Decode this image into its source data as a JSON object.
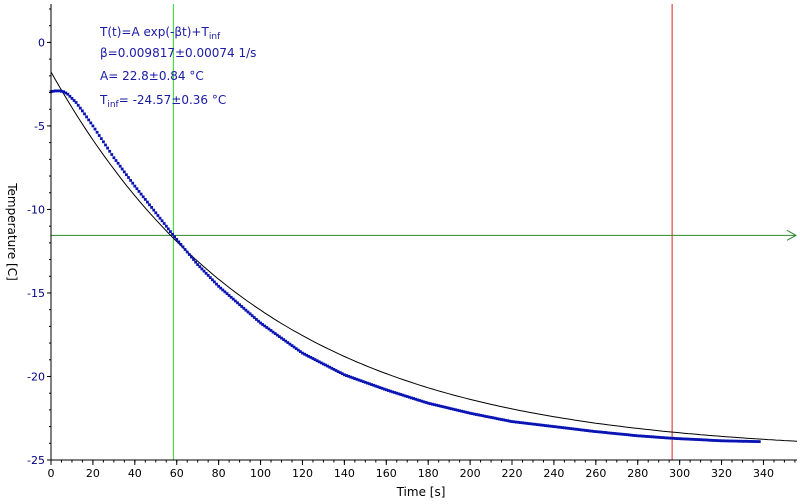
{
  "colors": {
    "data": "#0a14b4",
    "fit": "#000000",
    "vertical_cursor_1": "#2bd92b",
    "vertical_cursor_2": "#d82020",
    "horizontal_cursor": "#2a8a2a",
    "annotation": "#1a1aa6",
    "ylabel": "#1a1ac8",
    "y_ticks": "#000080",
    "x_ticks": "#000000"
  },
  "chart_data": {
    "type": "scatter",
    "xlabel": "Time [s]",
    "ylabel": "Temperature [C]",
    "xlim": [
      0,
      356
    ],
    "ylim": [
      -25,
      2.3
    ],
    "x_ticks": [
      0,
      20,
      40,
      60,
      80,
      100,
      120,
      140,
      160,
      180,
      200,
      220,
      240,
      260,
      280,
      300,
      320,
      340
    ],
    "y_ticks": [
      0,
      -5,
      -10,
      -15,
      -20,
      -25
    ],
    "grid": false,
    "cursors": {
      "vertical": [
        58.4,
        296.4
      ],
      "horizontal": -11.55
    },
    "annotation": {
      "formula_main": "T(t)=A exp(-βt)+T",
      "formula_sub": "inf",
      "beta": "β=0.009817±0.00074 1/s",
      "A": "A= 22.8±0.84 °C",
      "tinf_main": "T",
      "tinf_sub": "inf",
      "tinf_value": "= -24.57±0.36 °C"
    },
    "fit": {
      "A": 22.8,
      "beta": 0.009817,
      "T_inf": -24.57,
      "x_range": [
        0,
        356
      ]
    },
    "series": [
      {
        "kind": "measured",
        "x": [
          0,
          2,
          4,
          6,
          8,
          10,
          12,
          15,
          20,
          30,
          40,
          50,
          58.4,
          70,
          80,
          100,
          120,
          140,
          160,
          180,
          200,
          220,
          240,
          260,
          280,
          296.4,
          320,
          338
        ],
        "y": [
          -2.95,
          -2.9,
          -2.9,
          -2.95,
          -3.1,
          -3.35,
          -3.6,
          -4.1,
          -5.0,
          -6.9,
          -8.6,
          -10.2,
          -11.55,
          -13.3,
          -14.6,
          -16.8,
          -18.6,
          -19.9,
          -20.8,
          -21.6,
          -22.2,
          -22.7,
          -23.0,
          -23.3,
          -23.55,
          -23.7,
          -23.85,
          -23.9
        ]
      }
    ]
  }
}
